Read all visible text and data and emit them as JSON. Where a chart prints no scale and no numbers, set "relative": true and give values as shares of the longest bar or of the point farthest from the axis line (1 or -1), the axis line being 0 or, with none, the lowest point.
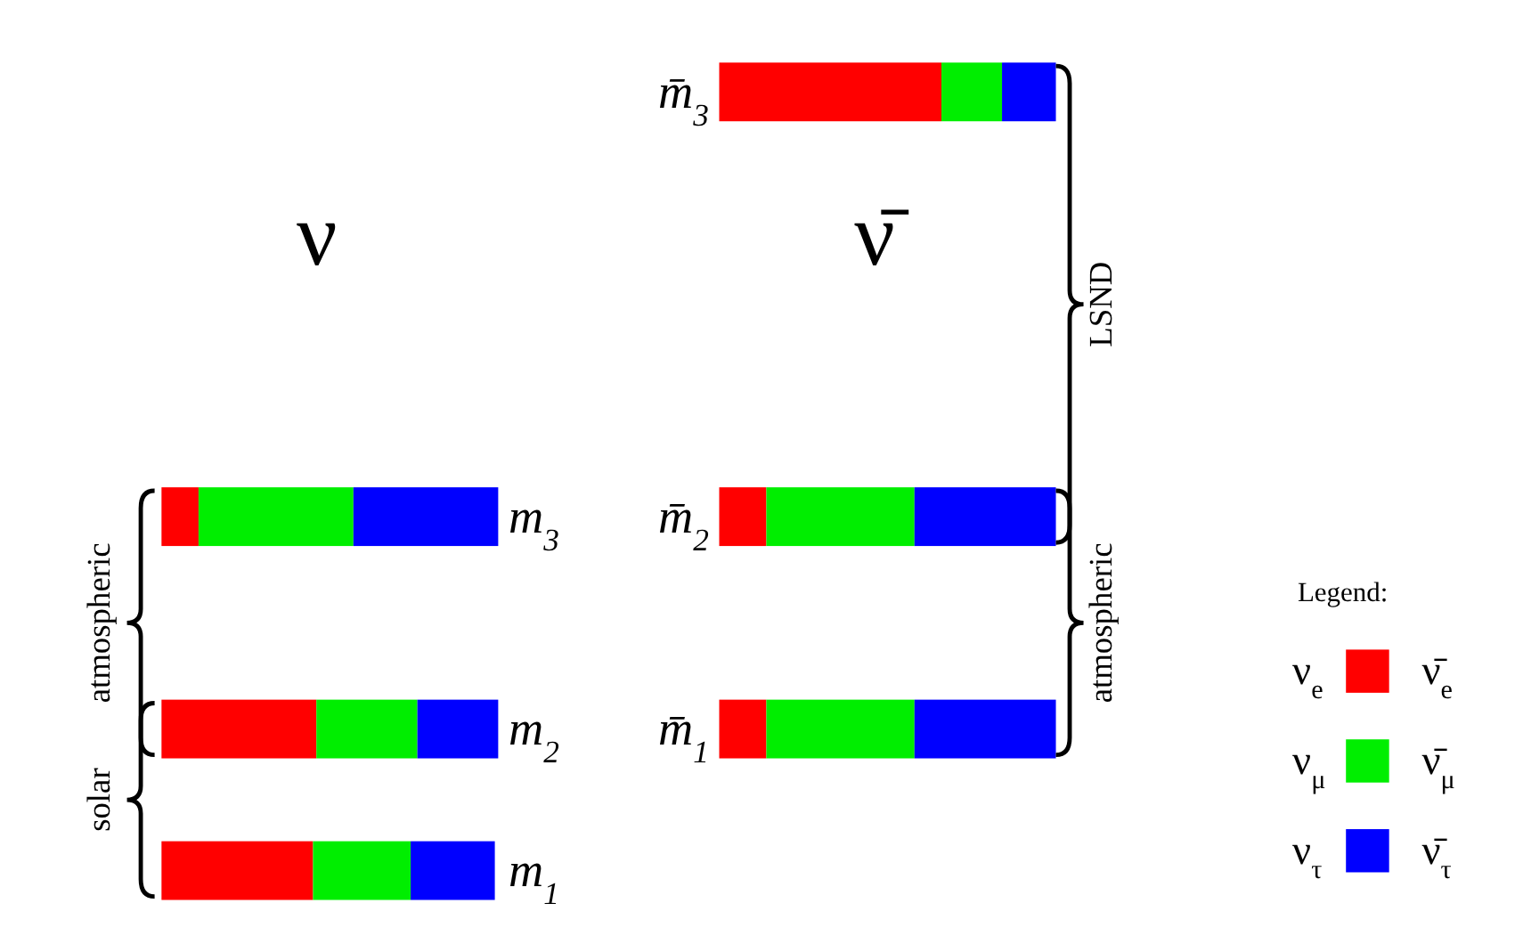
{
  "chart_data": [
    {
      "type": "bar",
      "orientation": "horizontal",
      "stacked": true,
      "relative": true,
      "title": "ν",
      "legend": "bottom right",
      "categories": [
        null,
        null,
        null,
        null,
        null,
        null,
        "m$_{3}$",
        null,
        null,
        "m$_{2}$",
        null,
        "m$_{1}$"
      ],
      "series": [
        {
          "name": "ν$_{e}$",
          "color": "#ff0000",
          "values": [
            null,
            null,
            null,
            null,
            null,
            null,
            0.11,
            null,
            null,
            0.46,
            null,
            0.45
          ]
        },
        {
          "name": "ν$_{μ}$",
          "color": "#00ee00",
          "values": [
            null,
            null,
            null,
            null,
            null,
            null,
            0.46,
            null,
            null,
            0.3,
            null,
            0.29
          ]
        },
        {
          "name": "ν$_{τ}$",
          "color": "#0000ff",
          "values": [
            null,
            null,
            null,
            null,
            null,
            null,
            0.43,
            null,
            null,
            0.24,
            null,
            0.25
          ]
        }
      ],
      "annotations": [
        "atmospheric",
        "solar"
      ]
    },
    {
      "type": "bar",
      "orientation": "horizontal",
      "stacked": true,
      "relative": true,
      "title": "ν̄",
      "legend": "bottom right",
      "legend_title": "Legend:",
      "categories": [
        "m̄$_{3}$",
        null,
        null,
        null,
        null,
        null,
        "m̄$_{2}$",
        null,
        null,
        "m̄$_{1}$",
        null,
        null
      ],
      "series": [
        {
          "name": "ν̄$_{e}$",
          "color": "#ff0000",
          "values": [
            0.66,
            null,
            null,
            null,
            null,
            null,
            0.14,
            null,
            null,
            0.14,
            null,
            null
          ]
        },
        {
          "name": "ν̄$_{μ}$",
          "color": "#00ee00",
          "values": [
            0.18,
            null,
            null,
            null,
            null,
            null,
            0.44,
            null,
            null,
            0.44,
            null,
            null
          ]
        },
        {
          "name": "ν̄$_{τ}$",
          "color": "#0000ff",
          "values": [
            0.16,
            null,
            null,
            null,
            null,
            null,
            0.42,
            null,
            null,
            0.42,
            null,
            null
          ]
        }
      ],
      "annotations": [
        "LSND",
        "atmospheric"
      ]
    }
  ]
}
